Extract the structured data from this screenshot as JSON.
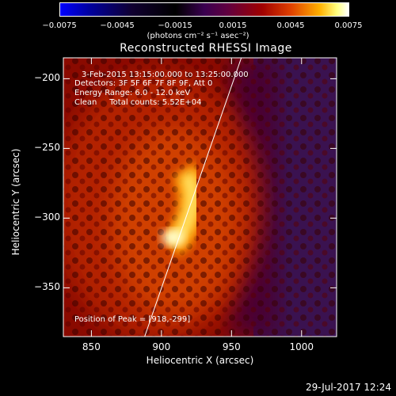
{
  "colorbar": {
    "ticks": [
      "−0.0075",
      "−0.0045",
      "−0.0015",
      "0.0015",
      "0.0045",
      "0.0075"
    ],
    "label": "(photons cm⁻² s⁻¹ asec⁻²)",
    "colormap": "blue-black-purple-red-yellow-white"
  },
  "chart_data": {
    "type": "heatmap",
    "title": "Reconstructed RHESSI Image",
    "xlabel": "Heliocentric X (arcsec)",
    "ylabel": "Heliocentric Y (arcsec)",
    "xlim": [
      830,
      1025
    ],
    "ylim": [
      -385,
      -185
    ],
    "x_ticks": [
      "850",
      "900",
      "950",
      "1000"
    ],
    "y_ticks": [
      "−200",
      "−250",
      "−300",
      "−350"
    ],
    "x_tick_values": [
      850,
      900,
      950,
      1000
    ],
    "y_tick_values": [
      -200,
      -250,
      -300,
      -350
    ],
    "peak": [
      918,
      -299
    ],
    "limb_line": [
      [
        888,
        -385
      ],
      [
        957,
        -185
      ]
    ],
    "colors": {
      "background": "#000000",
      "axes": "#ffffff"
    }
  },
  "info": {
    "time_range": "3-Feb-2015 13:15:00.000 to 13:25:00.000",
    "detectors": "Detectors: 3F 5F 6F 7F 8F 9F, Att 0",
    "energy": "Energy Range: 6.0 - 12.0 keV",
    "clean": "Clean     Total counts: 5.52E+04",
    "peak_text": "Position of Peak = [918,-299]"
  },
  "timestamp": "29-Jul-2017 12:24"
}
